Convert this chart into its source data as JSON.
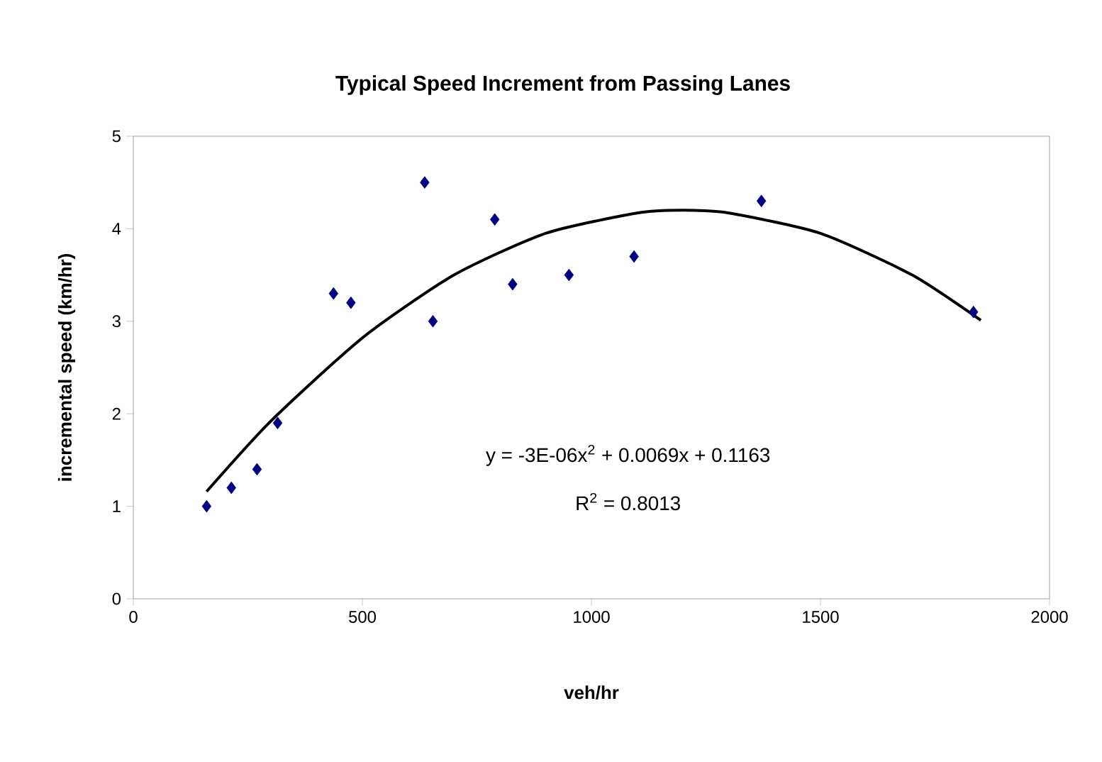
{
  "chart_data": {
    "type": "scatter",
    "title": "Typical Speed Increment from Passing Lanes",
    "xlabel": "veh/hr",
    "ylabel": "incremental speed (km/hr)",
    "xlim": [
      0,
      2000
    ],
    "ylim": [
      0,
      5
    ],
    "xticks": [
      0,
      500,
      1000,
      1500,
      2000
    ],
    "yticks": [
      0,
      1,
      2,
      3,
      4,
      5
    ],
    "grid": false,
    "marker": "diamond",
    "series": [
      {
        "color": "#000080",
        "x": [
          160,
          214,
          270,
          315,
          437,
          475,
          636,
          654,
          789,
          828,
          951,
          1093,
          1371,
          1834
        ],
        "values": [
          1.0,
          1.2,
          1.4,
          1.9,
          3.3,
          3.2,
          4.5,
          3.0,
          4.1,
          3.4,
          3.5,
          3.7,
          4.3,
          3.1
        ]
      },
      {
        "type": "line",
        "color": "#000000",
        "marker": "none",
        "line_style": "solid",
        "x": [
          160,
          300,
          500,
          700,
          900,
          1100,
          1200,
          1300,
          1500,
          1700,
          1850
        ],
        "values": [
          1.16,
          1.92,
          2.82,
          3.5,
          3.95,
          4.17,
          4.2,
          4.17,
          3.95,
          3.5,
          3.01
        ]
      }
    ],
    "annotations": [
      "y = -3E-06x$^{2}$ + 0.0069x + 0.1163",
      "R$^{2}$ = 0.8013"
    ]
  }
}
